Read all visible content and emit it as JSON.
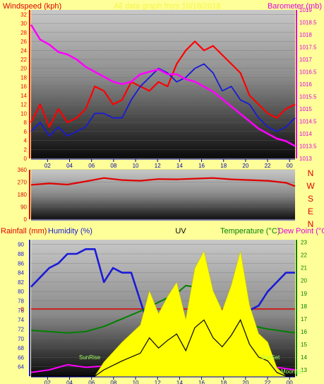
{
  "colors": {
    "page_bg": "#ffff99",
    "wind_axis": "#ff0000",
    "gust": "#ff0000",
    "wind_avg": "#1a1ad9",
    "baro": "#ff00ff",
    "baro_axis": "#e000e0",
    "dir": "#e00000",
    "compass": "#e00000",
    "rain_axis": "#e00000",
    "humidity": "#1a1ad9",
    "uv": "#ffff00",
    "uv_dark": "#000000",
    "temp": "#008000",
    "dew": "#ff00ff",
    "sun": "#a0ff60",
    "zero_line": "#e00000"
  },
  "top_panel": {
    "left_title": "Windspeed (kph)",
    "center_title": "All data graph from 10/18/2018",
    "right_title": "Barometer (mb)"
  },
  "bottom_panel": {
    "rain_title": "Rainfall (mm)",
    "hum_title": "Humidity (%)",
    "uv_title": "UV",
    "temp_title": "Temperature (°C)",
    "dew_title": "Dew Point (°C)",
    "sunrise": "SunRise",
    "sunset": "SunSet",
    "moonset": "MoonSet"
  },
  "compass": [
    "N",
    "W",
    "S",
    "E",
    "N"
  ],
  "chart_data": [
    {
      "type": "line",
      "x_ticks": [
        "02",
        "04",
        "06",
        "08",
        "10",
        "12",
        "14",
        "16",
        "18",
        "20",
        "22",
        "00"
      ],
      "wind_yticks": [
        "0",
        "2",
        "4",
        "6",
        "8",
        "10",
        "12",
        "14",
        "16",
        "18",
        "20",
        "22",
        "24",
        "26",
        "28",
        "30",
        "32"
      ],
      "baro_yticks": [
        "1013",
        "1013.5",
        "1014",
        "1014.5",
        "1015",
        "1015.5",
        "1016",
        "1016.5",
        "1017",
        "1017.5",
        "1018",
        "1018.5",
        "1019"
      ],
      "wind_ylim": [
        0,
        33
      ],
      "baro_ylim": [
        1013,
        1019
      ],
      "series": [
        {
          "key": "gust",
          "points": [
            [
              0,
              8
            ],
            [
              1,
              12
            ],
            [
              2,
              7
            ],
            [
              3,
              11
            ],
            [
              4,
              8
            ],
            [
              5,
              9
            ],
            [
              6,
              11
            ],
            [
              7,
              16
            ],
            [
              8,
              15
            ],
            [
              9,
              12
            ],
            [
              10,
              13
            ],
            [
              11,
              17
            ],
            [
              12,
              16
            ],
            [
              13,
              15
            ],
            [
              14,
              17
            ],
            [
              15,
              16
            ],
            [
              16,
              21
            ],
            [
              17,
              24
            ],
            [
              18,
              26
            ],
            [
              19,
              24
            ],
            [
              20,
              25
            ],
            [
              21,
              23
            ],
            [
              22,
              21
            ],
            [
              23,
              19
            ],
            [
              24,
              14
            ],
            [
              25,
              12
            ],
            [
              26,
              10
            ],
            [
              27,
              9
            ],
            [
              28,
              11
            ],
            [
              29,
              12
            ]
          ]
        },
        {
          "key": "wind_avg",
          "points": [
            [
              0,
              6
            ],
            [
              1,
              8
            ],
            [
              2,
              5
            ],
            [
              3,
              7
            ],
            [
              4,
              5
            ],
            [
              5,
              6
            ],
            [
              6,
              7
            ],
            [
              7,
              10
            ],
            [
              8,
              10
            ],
            [
              9,
              9
            ],
            [
              10,
              9
            ],
            [
              11,
              13
            ],
            [
              12,
              16
            ],
            [
              13,
              18
            ],
            [
              14,
              20
            ],
            [
              15,
              19
            ],
            [
              16,
              17
            ],
            [
              17,
              18
            ],
            [
              18,
              20
            ],
            [
              19,
              21
            ],
            [
              20,
              19
            ],
            [
              21,
              15
            ],
            [
              22,
              16
            ],
            [
              23,
              13
            ],
            [
              24,
              12
            ],
            [
              25,
              9
            ],
            [
              26,
              7
            ],
            [
              27,
              6
            ],
            [
              28,
              7
            ],
            [
              29,
              9
            ]
          ]
        },
        {
          "key": "baro",
          "points": [
            [
              0,
              1018.4
            ],
            [
              1,
              1017.8
            ],
            [
              2,
              1017.6
            ],
            [
              3,
              1017.3
            ],
            [
              4,
              1017.2
            ],
            [
              5,
              1017.0
            ],
            [
              6,
              1016.7
            ],
            [
              7,
              1016.5
            ],
            [
              8,
              1016.3
            ],
            [
              9,
              1016.1
            ],
            [
              10,
              1016.0
            ],
            [
              11,
              1016.1
            ],
            [
              12,
              1016.4
            ],
            [
              13,
              1016.5
            ],
            [
              14,
              1016.6
            ],
            [
              15,
              1016.4
            ],
            [
              16,
              1016.4
            ],
            [
              17,
              1016.2
            ],
            [
              18,
              1016.1
            ],
            [
              19,
              1015.9
            ],
            [
              20,
              1015.7
            ],
            [
              21,
              1015.4
            ],
            [
              22,
              1015.1
            ],
            [
              23,
              1014.8
            ],
            [
              24,
              1014.5
            ],
            [
              25,
              1014.2
            ],
            [
              26,
              1014.0
            ],
            [
              27,
              1013.8
            ],
            [
              28,
              1013.7
            ],
            [
              29,
              1013.5
            ]
          ]
        }
      ]
    },
    {
      "type": "line",
      "title": "",
      "x_ticks": [
        "02",
        "04",
        "06",
        "08",
        "10",
        "12",
        "14",
        "16",
        "18",
        "20",
        "22",
        "00"
      ],
      "yticks": [
        "0",
        "90",
        "180",
        "270",
        "360"
      ],
      "ylim": [
        0,
        360
      ],
      "series": [
        {
          "key": "dir",
          "points": [
            [
              0,
              250
            ],
            [
              2,
              260
            ],
            [
              4,
              252
            ],
            [
              6,
              275
            ],
            [
              8,
              300
            ],
            [
              10,
              285
            ],
            [
              12,
              280
            ],
            [
              14,
              292
            ],
            [
              16,
              290
            ],
            [
              18,
              295
            ],
            [
              20,
              300
            ],
            [
              22,
              290
            ],
            [
              24,
              285
            ],
            [
              26,
              280
            ],
            [
              28,
              265
            ],
            [
              29,
              240
            ]
          ]
        }
      ]
    },
    {
      "type": "line",
      "x_ticks": [
        "02",
        "04",
        "06",
        "08",
        "10",
        "12",
        "14",
        "16",
        "18",
        "20",
        "22",
        "00"
      ],
      "hum_yticks": [
        "64",
        "66",
        "68",
        "70",
        "72",
        "74",
        "76",
        "78",
        "80",
        "82",
        "84",
        "86",
        "88",
        "90"
      ],
      "temp_yticks": [
        "13",
        "14",
        "15",
        "16",
        "17",
        "18",
        "19",
        "20",
        "21",
        "22",
        "23"
      ],
      "rain_ytick": "0",
      "hum_ylim": [
        62,
        91
      ],
      "temp_ylim": [
        12.5,
        23.2
      ],
      "series": [
        {
          "key": "humidity",
          "points": [
            [
              0,
              81
            ],
            [
              1,
              83
            ],
            [
              2,
              85
            ],
            [
              3,
              86
            ],
            [
              4,
              88
            ],
            [
              5,
              88
            ],
            [
              6,
              89
            ],
            [
              7,
              89
            ],
            [
              8,
              82
            ],
            [
              9,
              85
            ],
            [
              10,
              84
            ],
            [
              11,
              84
            ],
            [
              12,
              78
            ],
            [
              13,
              72
            ],
            [
              14,
              75
            ],
            [
              15,
              73
            ],
            [
              16,
              76
            ],
            [
              17,
              72
            ],
            [
              18,
              70
            ],
            [
              19,
              72
            ],
            [
              20,
              66
            ],
            [
              21,
              68
            ],
            [
              22,
              72
            ],
            [
              23,
              74
            ],
            [
              24,
              76
            ],
            [
              25,
              77
            ],
            [
              26,
              80
            ],
            [
              27,
              82
            ],
            [
              28,
              84
            ],
            [
              29,
              84
            ]
          ]
        },
        {
          "key": "temp",
          "points": [
            [
              0,
              16.1
            ],
            [
              2,
              16.0
            ],
            [
              4,
              15.9
            ],
            [
              6,
              16.0
            ],
            [
              8,
              16.4
            ],
            [
              10,
              17.0
            ],
            [
              12,
              17.6
            ],
            [
              14,
              18.3
            ],
            [
              16,
              19.0
            ],
            [
              17,
              19.6
            ],
            [
              18,
              19.5
            ],
            [
              19,
              18.8
            ],
            [
              20,
              18.0
            ],
            [
              21,
              17.5
            ],
            [
              22,
              17.0
            ],
            [
              24,
              16.5
            ],
            [
              26,
              16.2
            ],
            [
              28,
              16.0
            ],
            [
              29,
              15.9
            ]
          ]
        },
        {
          "key": "dew",
          "points": [
            [
              0,
              12.8
            ],
            [
              2,
              13.0
            ],
            [
              3,
              13.2
            ],
            [
              4,
              13.4
            ],
            [
              6,
              13.2
            ],
            [
              8,
              13.3
            ],
            [
              10,
              13.4
            ],
            [
              12,
              13.6
            ],
            [
              14,
              13.7
            ],
            [
              16,
              13.6
            ],
            [
              18,
              13.8
            ],
            [
              20,
              14.0
            ],
            [
              22,
              13.9
            ],
            [
              24,
              13.6
            ],
            [
              26,
              13.3
            ],
            [
              28,
              13.1
            ],
            [
              29,
              13.0
            ]
          ]
        },
        {
          "key": "uv",
          "points": [
            [
              0,
              0
            ],
            [
              7,
              0
            ],
            [
              8,
              0.5
            ],
            [
              10,
              1.2
            ],
            [
              12,
              1.8
            ],
            [
              13,
              3.0
            ],
            [
              14,
              2.2
            ],
            [
              15,
              2.8
            ],
            [
              16,
              3.3
            ],
            [
              17,
              2.0
            ],
            [
              18,
              3.8
            ],
            [
              19,
              4.4
            ],
            [
              20,
              3.0
            ],
            [
              21,
              2.3
            ],
            [
              22,
              3.2
            ],
            [
              23,
              4.4
            ],
            [
              24,
              2.5
            ],
            [
              25,
              1.5
            ],
            [
              26,
              1.2
            ],
            [
              27,
              0.3
            ],
            [
              28,
              0
            ],
            [
              29,
              0
            ]
          ]
        }
      ]
    }
  ]
}
